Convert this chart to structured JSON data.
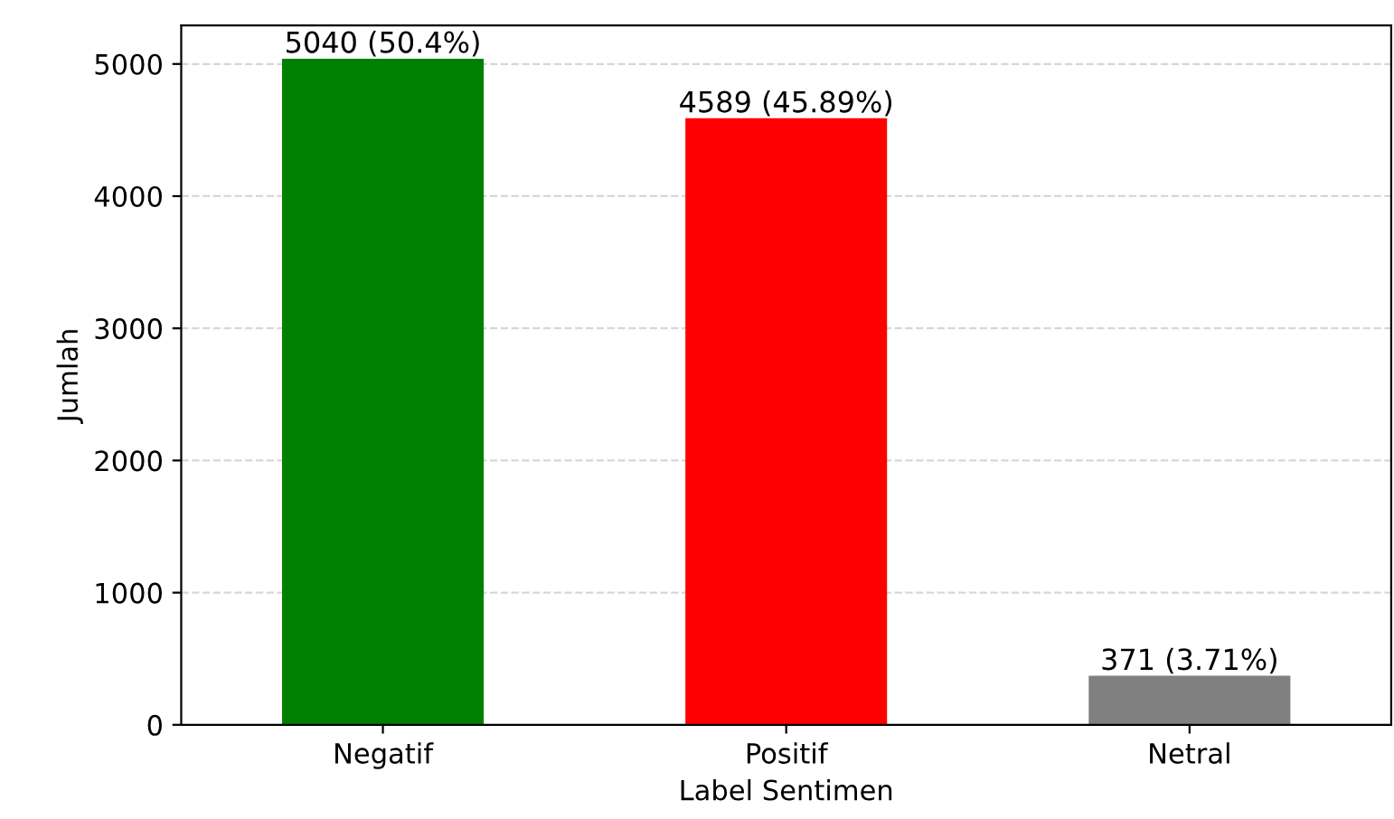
{
  "chart_data": {
    "type": "bar",
    "xlabel": "Label Sentimen",
    "ylabel": "Jumlah",
    "categories": [
      "Negatif",
      "Positif",
      "Netral"
    ],
    "values": [
      5040,
      4589,
      371
    ],
    "colors": [
      "#008000",
      "#ff0000",
      "#808080"
    ],
    "value_labels": [
      "5040 (50.4%)",
      "4589 (45.89%)",
      "371 (3.71%)"
    ],
    "ylim": [
      0,
      5292
    ],
    "yticks": [
      0,
      1000,
      2000,
      3000,
      4000,
      5000
    ],
    "grid": "y"
  }
}
